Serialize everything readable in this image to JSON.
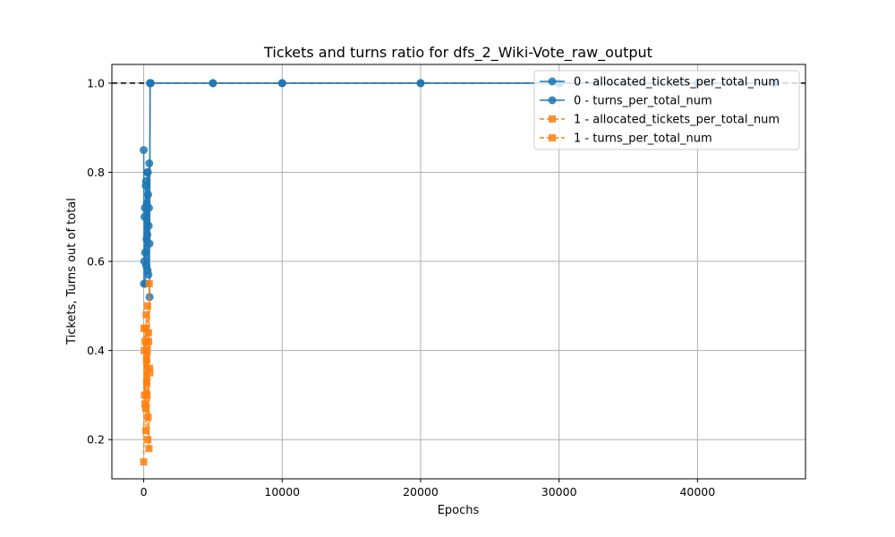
{
  "chart_data": {
    "type": "line",
    "title": "Tickets and turns ratio for dfs_2_Wiki-Vote_raw_output",
    "xlabel": "Epochs",
    "ylabel": "Tickets, Turns out of total",
    "xlim": [
      -2300,
      47800
    ],
    "ylim": [
      0.112,
      1.042
    ],
    "xticks": [
      0,
      10000,
      20000,
      30000,
      40000
    ],
    "yticks": [
      0.2,
      0.4,
      0.6,
      0.8,
      1.0
    ],
    "xtick_labels": [
      "0",
      "10000",
      "20000",
      "30000",
      "40000"
    ],
    "ytick_labels": [
      "0.2",
      "0.4",
      "0.6",
      "0.8",
      "1.0"
    ],
    "grid": true,
    "legend_position": "top-right",
    "reference_line": {
      "y": 1.0,
      "style": "dashed",
      "color": "#000000"
    },
    "series": [
      {
        "name": "0 - allocated_tickets_per_total_num",
        "color": "#1f77b4",
        "marker": "circle",
        "linestyle": "solid",
        "x": [
          0,
          40,
          80,
          120,
          160,
          200,
          240,
          280,
          320,
          360,
          400,
          420,
          460,
          500,
          5000,
          10000,
          20000,
          30000,
          40000,
          45500
        ],
        "y": [
          0.85,
          0.6,
          0.72,
          0.55,
          0.78,
          0.65,
          0.8,
          0.58,
          0.75,
          0.68,
          0.82,
          0.52,
          1.0,
          1.0,
          1.0,
          1.0,
          1.0,
          1.0,
          1.0,
          1.0
        ]
      },
      {
        "name": "0 - turns_per_total_num",
        "color": "#1f77b4",
        "marker": "circle",
        "linestyle": "solid",
        "x": [
          20,
          60,
          100,
          140,
          180,
          220,
          260,
          300,
          340,
          380,
          420,
          460,
          500,
          5000,
          10000,
          20000,
          30000,
          40000,
          45500
        ],
        "y": [
          0.55,
          0.7,
          0.62,
          0.77,
          0.59,
          0.73,
          0.66,
          0.8,
          0.57,
          0.72,
          0.64,
          1.0,
          1.0,
          1.0,
          1.0,
          1.0,
          1.0,
          1.0,
          1.0
        ]
      },
      {
        "name": "1 - allocated_tickets_per_total_num",
        "color": "#ff7f0e",
        "marker": "square",
        "linestyle": "dashed",
        "x": [
          0,
          40,
          80,
          120,
          160,
          200,
          240,
          280,
          320,
          360,
          400,
          440
        ],
        "y": [
          0.15,
          0.4,
          0.28,
          0.45,
          0.22,
          0.38,
          0.3,
          0.5,
          0.25,
          0.42,
          0.55,
          0.35
        ]
      },
      {
        "name": "1 - turns_per_total_num",
        "color": "#ff7f0e",
        "marker": "square",
        "linestyle": "dashed",
        "x": [
          20,
          60,
          100,
          140,
          180,
          220,
          260,
          300,
          340,
          380,
          420
        ],
        "y": [
          0.45,
          0.3,
          0.42,
          0.27,
          0.48,
          0.33,
          0.4,
          0.2,
          0.44,
          0.18,
          0.36
        ]
      }
    ]
  }
}
